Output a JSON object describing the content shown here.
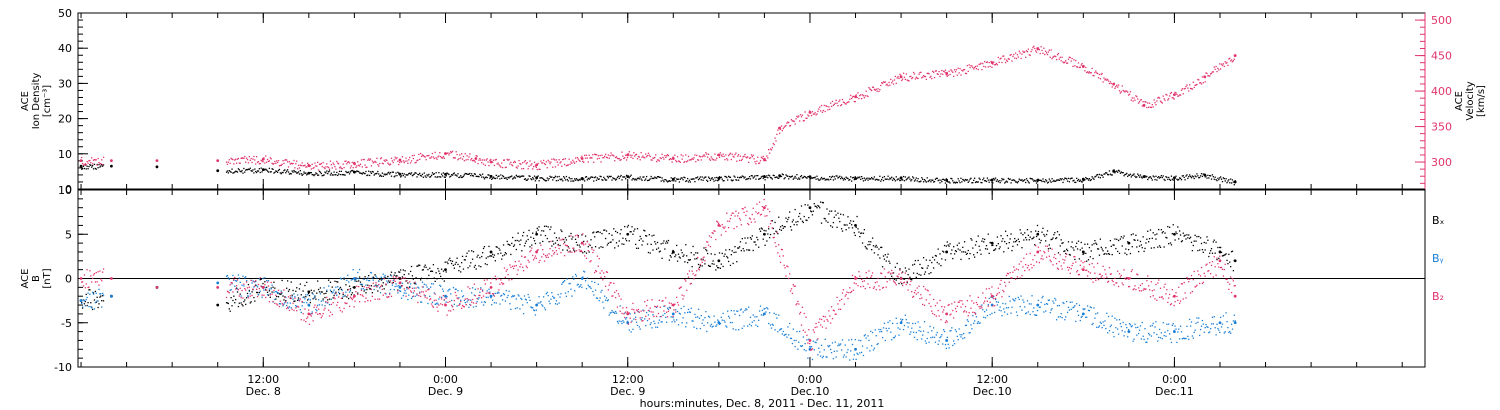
{
  "chart_data": {
    "type": "scatter",
    "xlabel": "hours:minutes, Dec. 8, 2011 - Dec. 11, 2011",
    "x_ticks": [
      {
        "hour": 12,
        "time": "12:00",
        "date": "Dec. 8"
      },
      {
        "hour": 24,
        "time": "0:00",
        "date": "Dec. 9"
      },
      {
        "hour": 36,
        "time": "12:00",
        "date": "Dec. 9"
      },
      {
        "hour": 48,
        "time": "0:00",
        "date": "Dec.10"
      },
      {
        "hour": 60,
        "time": "12:00",
        "date": "Dec.10"
      },
      {
        "hour": 72,
        "time": "0:00",
        "date": "Dec.11"
      }
    ],
    "xlim": [
      -0.2,
      88.5
    ],
    "panels": [
      {
        "ylabel": [
          "ACE",
          "Ion Density",
          "[cm⁻³]"
        ],
        "ylim": [
          0,
          50
        ],
        "yticks": [
          0,
          10,
          20,
          30,
          40,
          50
        ],
        "right_axis": {
          "ylabel": [
            "ACE",
            "Velocity",
            "[km/s]"
          ],
          "ylim": [
            262,
            510
          ],
          "yticks": [
            300,
            350,
            400,
            450,
            500
          ],
          "color": "#e0356b"
        },
        "series": [
          {
            "color": "#000000",
            "axis": "left",
            "x": [
              0,
              2,
              5,
              9,
              12,
              15,
              18,
              21,
              24,
              27,
              30,
              33,
              36,
              39,
              42,
              45,
              46,
              48,
              51,
              54,
              57,
              60,
              63,
              66,
              68,
              70,
              72,
              74,
              76
            ],
            "y": [
              6.5,
              6.5,
              6.3,
              5.2,
              5.5,
              4.5,
              4.8,
              4.2,
              4.2,
              3.6,
              3.2,
              3.0,
              3.5,
              2.8,
              3.0,
              3.5,
              3.8,
              3.5,
              3.0,
              3.2,
              2.5,
              2.6,
              2.5,
              2.8,
              5,
              3.5,
              3.2,
              4,
              2
            ]
          },
          {
            "color": "#e0356b",
            "axis": "right",
            "x": [
              0,
              2,
              5,
              9,
              12,
              15,
              18,
              21,
              24,
              26,
              27,
              30,
              33,
              36,
              39,
              42,
              45,
              46,
              48,
              51,
              54,
              57,
              60,
              63,
              66,
              68,
              70,
              72,
              74,
              76
            ],
            "y": [
              302,
              302,
              302,
              302,
              304,
              295,
              298,
              303,
              312,
              305,
              300,
              296,
              305,
              310,
              305,
              310,
              303,
              348,
              370,
              392,
              420,
              425,
              440,
              460,
              435,
              410,
              380,
              395,
              420,
              450
            ]
          }
        ]
      },
      {
        "ylabel": [
          "ACE",
          "B",
          "[nT]"
        ],
        "ylim": [
          -10,
          10
        ],
        "yticks": [
          -10,
          -5,
          0,
          5,
          10
        ],
        "zero_line": true,
        "series": [
          {
            "name": "Bₓ",
            "color": "#000000",
            "x": [
              0,
              2,
              5,
              9,
              12,
              15,
              18,
              21,
              24,
              27,
              30,
              33,
              36,
              39,
              42,
              45,
              48,
              51,
              54,
              57,
              60,
              63,
              66,
              69,
              72,
              75,
              76
            ],
            "y": [
              -2.5,
              -2,
              -1,
              -3,
              -1,
              -1.5,
              -1,
              0,
              1,
              3,
              5,
              4,
              5,
              3,
              2,
              5,
              8,
              6,
              0,
              3,
              4,
              5,
              3,
              4,
              5,
              3,
              2
            ]
          },
          {
            "name": "Bᵧ",
            "color": "#1a7fd6",
            "x": [
              0,
              2,
              5,
              9,
              12,
              15,
              18,
              21,
              24,
              27,
              30,
              33,
              36,
              39,
              42,
              45,
              48,
              51,
              54,
              57,
              60,
              63,
              66,
              69,
              72,
              75,
              76
            ],
            "y": [
              -2.5,
              -2,
              -1,
              -0.5,
              -1,
              -3,
              0,
              -1,
              -2,
              -2,
              -3,
              0,
              -5,
              -4,
              -5,
              -4,
              -8,
              -8,
              -5,
              -7,
              -3,
              -3,
              -4,
              -6,
              -6,
              -5,
              -5
            ]
          },
          {
            "name": "B₂",
            "color": "#e0356b",
            "x": [
              0,
              2,
              5,
              9,
              12,
              15,
              18,
              21,
              24,
              27,
              30,
              33,
              36,
              39,
              42,
              45,
              48,
              51,
              54,
              57,
              60,
              63,
              66,
              69,
              72,
              75,
              76
            ],
            "y": [
              0,
              0,
              -1,
              -1,
              -1,
              -4,
              -2,
              -0.5,
              -3,
              -1,
              3,
              4,
              -4,
              -3,
              6,
              8,
              -7,
              0,
              0,
              -4,
              -2,
              3,
              1,
              0,
              -2,
              2,
              -2
            ]
          }
        ]
      }
    ]
  }
}
